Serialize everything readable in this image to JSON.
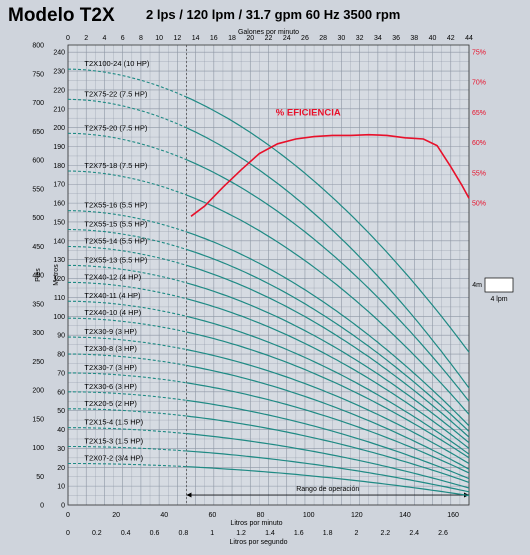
{
  "header": {
    "title": "Modelo T2X",
    "subtitle": "2 lps / 120 lpm / 31.7 gpm  60 Hz  3500 rpm"
  },
  "colors": {
    "curve": "#1f8a84",
    "efficiency": "#e8102a",
    "grid": "#8d96a4",
    "background": "#cfd4dc",
    "plot_bg": "#d6dbe2"
  },
  "chart_data": {
    "type": "line",
    "title": "Modelo T2X",
    "top_axis": {
      "label": "Galones por minuto",
      "range": [
        0,
        44
      ],
      "ticks": [
        "0",
        "2",
        "4",
        "6",
        "8",
        "10",
        "12",
        "14",
        "16",
        "18",
        "20",
        "22",
        "24",
        "26",
        "28",
        "30",
        "32",
        "34",
        "36",
        "38",
        "40",
        "42",
        "44"
      ]
    },
    "bottom_axis_lpm": {
      "label": "Litros por minuto",
      "range": [
        0,
        166.6
      ],
      "ticks": [
        "0",
        "20",
        "40",
        "60",
        "80",
        "100",
        "120",
        "140",
        "160"
      ]
    },
    "bottom_axis_lps": {
      "label": "Litros por segundo",
      "range": [
        0,
        2.78
      ],
      "ticks": [
        "0",
        "0.2",
        "0.4",
        "0.6",
        "0.8",
        "1",
        "1.2",
        "1.4",
        "1.6",
        "1.8",
        "2",
        "2.2",
        "2.4",
        "2.6"
      ]
    },
    "left_axis_feet": {
      "label": "Pies",
      "range": [
        0,
        800
      ],
      "ticks": [
        "0",
        "50",
        "100",
        "150",
        "200",
        "250",
        "300",
        "350",
        "400",
        "450",
        "500",
        "550",
        "600",
        "650",
        "700",
        "750",
        "800"
      ]
    },
    "left_axis_meters": {
      "label": "Metros",
      "range": [
        0,
        243.8
      ],
      "ticks": [
        "0",
        "10",
        "20",
        "30",
        "40",
        "50",
        "60",
        "70",
        "80",
        "90",
        "100",
        "110",
        "120",
        "130",
        "140",
        "150",
        "160",
        "170",
        "180",
        "190",
        "200",
        "210",
        "220",
        "230",
        "240"
      ]
    },
    "right_axis_efficiency": {
      "range": [
        50,
        75
      ],
      "ticks": [
        "50%",
        "55%",
        "60%",
        "65%",
        "70%",
        "75%"
      ]
    },
    "reference_line_gpm": 13,
    "operating_range": {
      "label": "Rango de operación",
      "gpm": [
        13,
        44
      ]
    },
    "scale_box": {
      "label_m": "4m",
      "label_lpm": "4 lpm"
    },
    "efficiency": {
      "label": "% EFICIENCIA",
      "x_gpm": [
        13.5,
        15,
        17,
        19,
        21,
        23,
        25,
        27,
        29,
        31,
        33,
        35,
        37,
        39,
        40.5,
        42,
        43.2,
        44
      ],
      "y_percent": [
        47.8,
        49.5,
        52.6,
        55.5,
        58.2,
        59.8,
        60.6,
        61.0,
        61.2,
        61.2,
        61.3,
        61.2,
        60.8,
        60.6,
        59.5,
        56.0,
        53.0,
        50.8
      ]
    },
    "series": [
      {
        "name": "T2X100-24 (10 HP)",
        "shutoff_m": 231,
        "end_m": 81
      },
      {
        "name": "T2X75-22 (7.5 HP)",
        "shutoff_m": 215,
        "end_m": 62
      },
      {
        "name": "T2X75-20  (7.5 HP)",
        "shutoff_m": 197,
        "end_m": 55
      },
      {
        "name": "T2X75-18  (7.5 HP)",
        "shutoff_m": 177,
        "end_m": 48
      },
      {
        "name": "T2X55-16  (5.5 HP)",
        "shutoff_m": 156,
        "end_m": 42
      },
      {
        "name": "T2X55-15  (5.5 HP)",
        "shutoff_m": 146,
        "end_m": 39
      },
      {
        "name": "T2X55-14  (5.5 HP)",
        "shutoff_m": 137,
        "end_m": 36
      },
      {
        "name": "T2X55-13  (5.5 HP)",
        "shutoff_m": 127,
        "end_m": 33
      },
      {
        "name": "T2X40-12  (4 HP)",
        "shutoff_m": 118,
        "end_m": 30
      },
      {
        "name": "T2X40-11   (4 HP)",
        "shutoff_m": 108,
        "end_m": 27
      },
      {
        "name": "T2X40-10  (4 HP)",
        "shutoff_m": 99,
        "end_m": 25
      },
      {
        "name": "T2X30-9   (3 HP)",
        "shutoff_m": 89,
        "end_m": 22
      },
      {
        "name": "T2X30-8   (3 HP)",
        "shutoff_m": 80,
        "end_m": 19
      },
      {
        "name": "T2X30-7   (3 HP)",
        "shutoff_m": 70,
        "end_m": 17
      },
      {
        "name": "T2X30-6   (3 HP)",
        "shutoff_m": 60,
        "end_m": 14
      },
      {
        "name": "T2X20-5   (2 HP)",
        "shutoff_m": 51,
        "end_m": 12
      },
      {
        "name": "T2X15-4   (1.5 HP)",
        "shutoff_m": 41,
        "end_m": 9
      },
      {
        "name": "T2X15-3   (1.5 HP)",
        "shutoff_m": 31,
        "end_m": 7
      },
      {
        "name": "T2X07-2   (3/4 HP)",
        "shutoff_m": 22,
        "end_m": 5
      }
    ]
  }
}
